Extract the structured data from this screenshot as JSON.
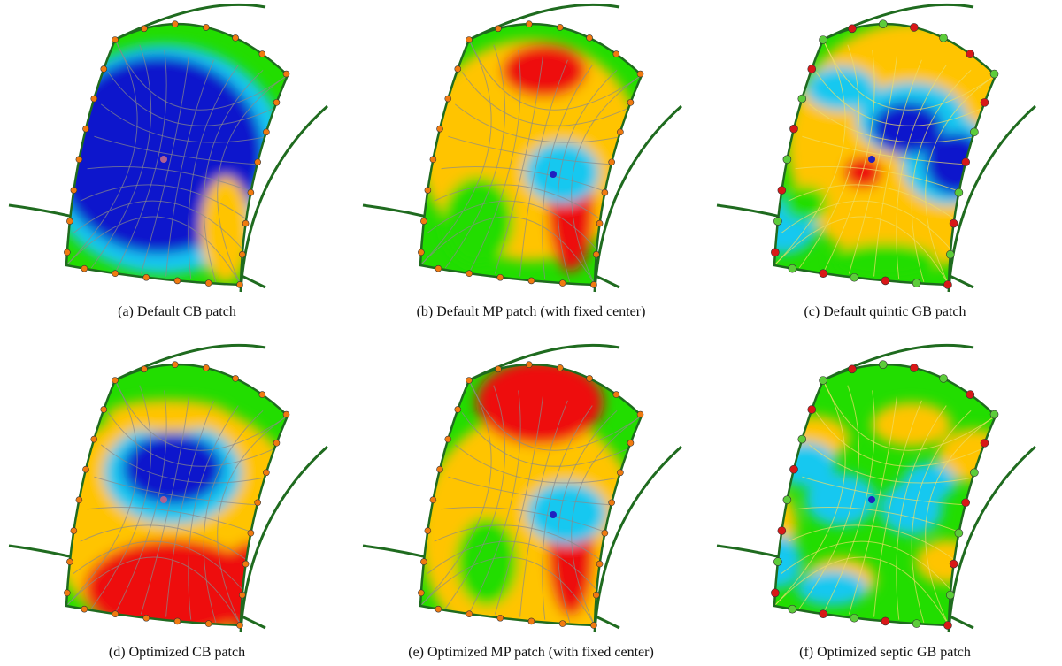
{
  "figure": {
    "panels": [
      {
        "caption": "(a) Default CB patch"
      },
      {
        "caption": "(b) Default MP patch (with fixed center)"
      },
      {
        "caption": "(c) Default quintic GB patch"
      },
      {
        "caption": "(d) Optimized CB patch"
      },
      {
        "caption": "(e) Optimized MP patch (with fixed center)"
      },
      {
        "caption": "(f) Optimized septic GB patch"
      }
    ]
  }
}
